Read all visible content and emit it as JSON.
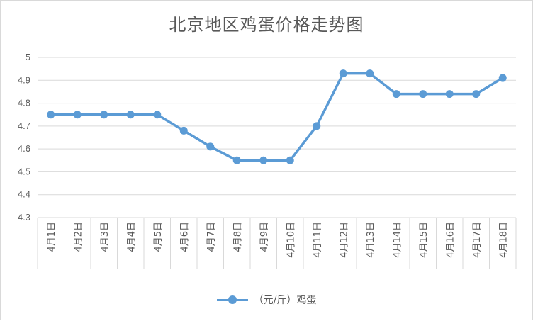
{
  "chart_data": {
    "type": "line",
    "title": "北京地区鸡蛋价格走势图",
    "categories": [
      "4月1日",
      "4月2日",
      "4月3日",
      "4月4日",
      "4月5日",
      "4月6日",
      "4月7日",
      "4月8日",
      "4月9日",
      "4月10日",
      "4月11日",
      "4月12日",
      "4月13日",
      "4月14日",
      "4月15日",
      "4月16日",
      "4月17日",
      "4月18日"
    ],
    "series": [
      {
        "name": "（元/斤）鸡蛋",
        "values": [
          4.75,
          4.75,
          4.75,
          4.75,
          4.75,
          4.68,
          4.61,
          4.55,
          4.55,
          4.55,
          4.7,
          4.93,
          4.93,
          4.84,
          4.84,
          4.84,
          4.84,
          4.91
        ]
      }
    ],
    "ylim": [
      4.3,
      5.0
    ],
    "yticks": [
      "4.3",
      "4.4",
      "4.5",
      "4.6",
      "4.7",
      "4.8",
      "4.9",
      "5"
    ],
    "xlabel": "",
    "ylabel": "",
    "grid": true,
    "legend_position": "bottom",
    "colors": {
      "series": "#5b9bd5",
      "grid": "#d9d9d9",
      "text": "#595959"
    }
  }
}
